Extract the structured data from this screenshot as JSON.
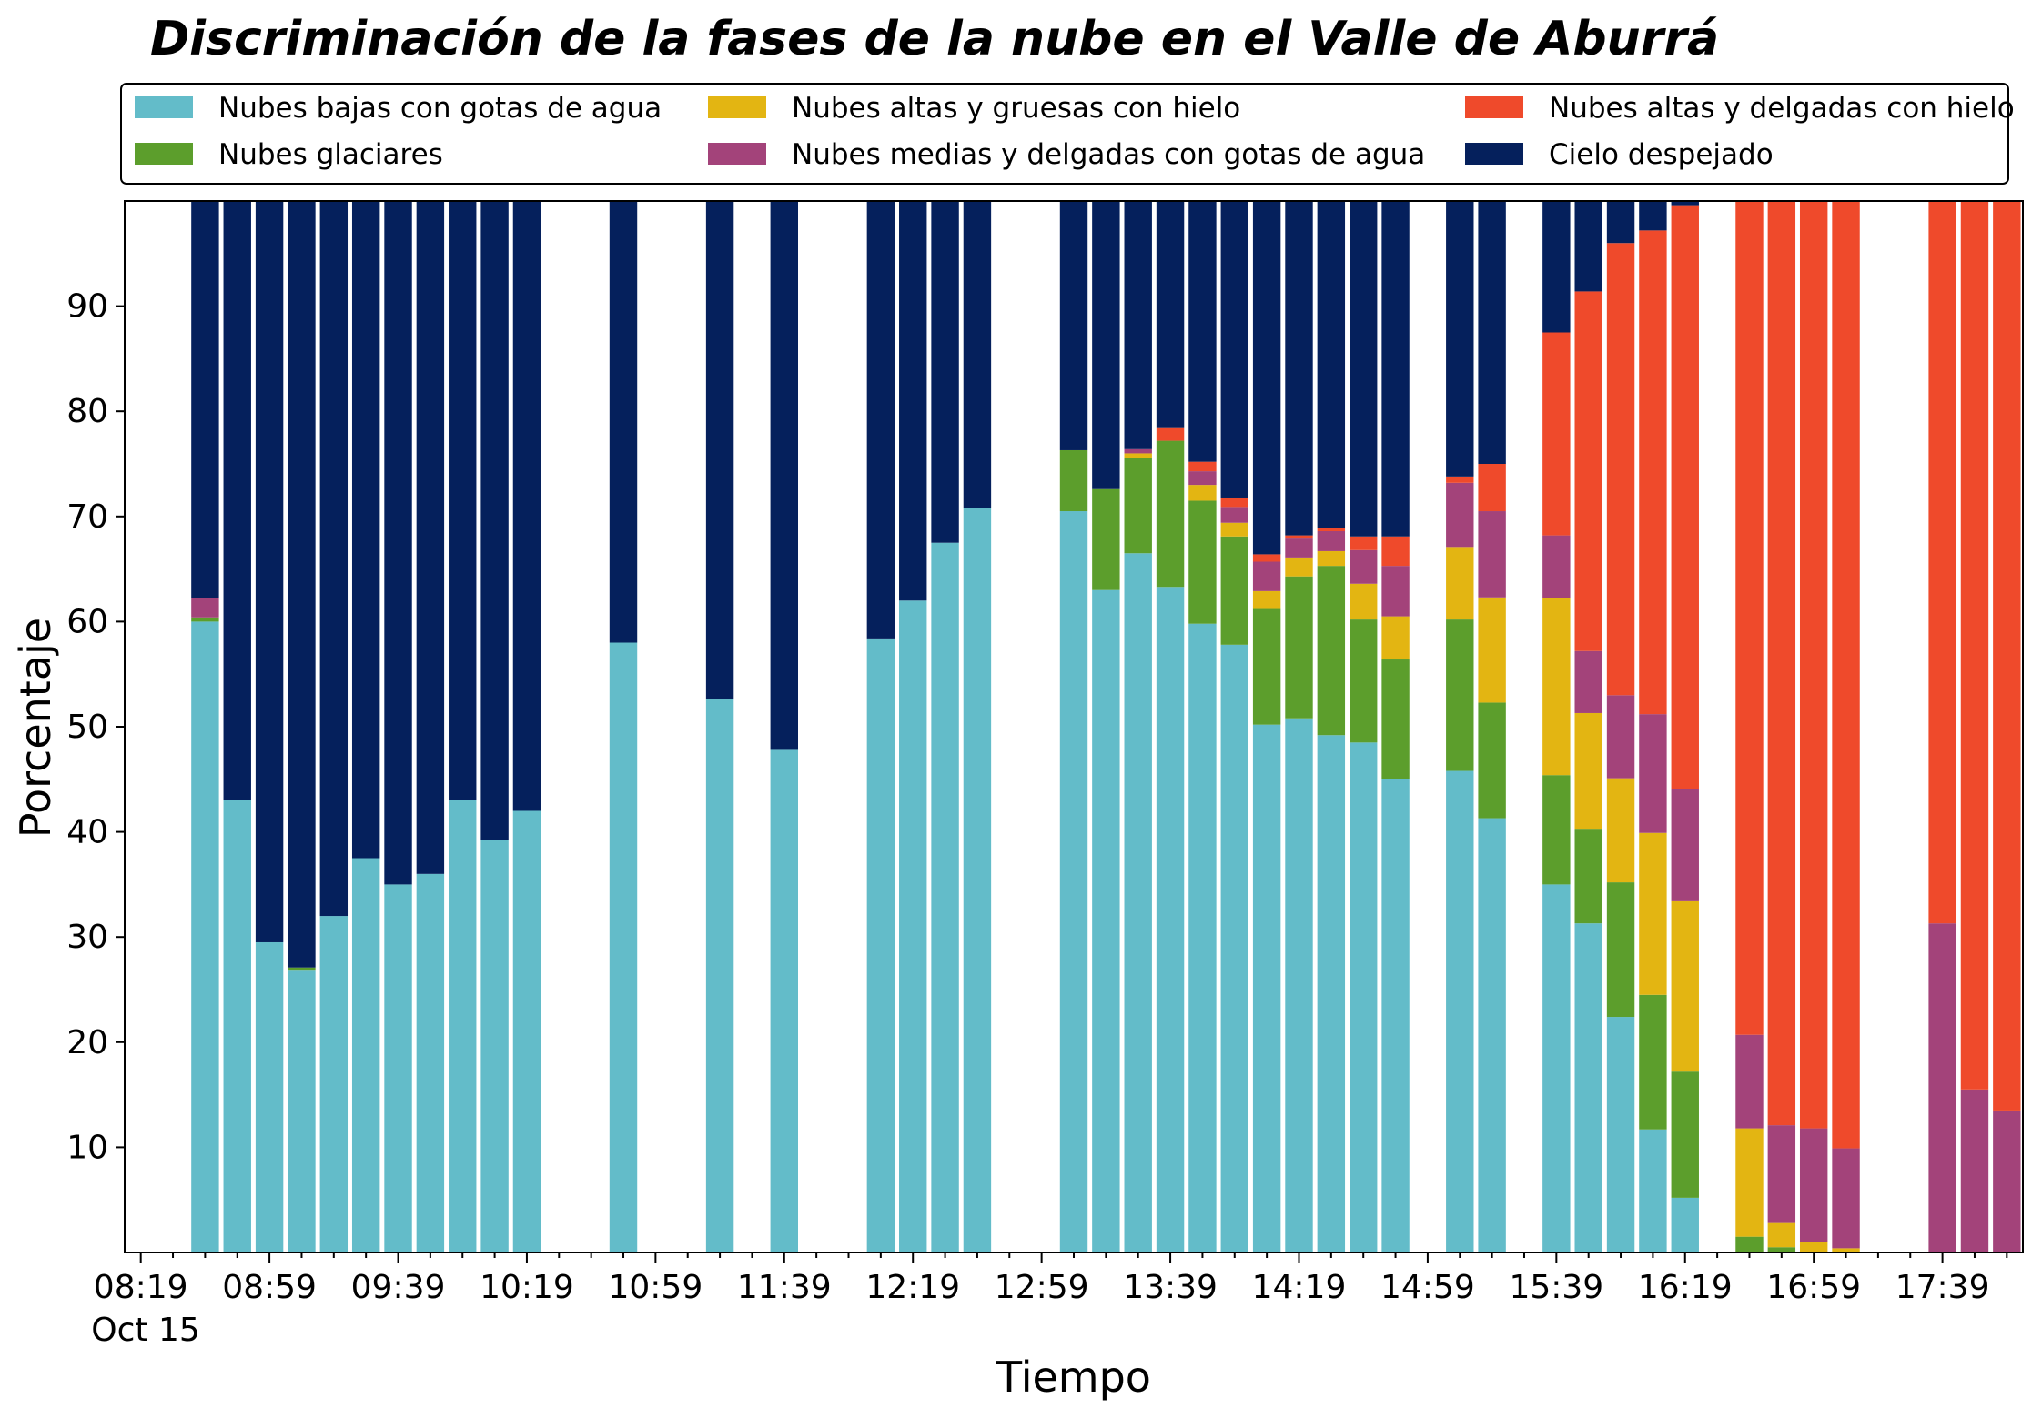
{
  "chart_data": {
    "type": "bar",
    "stacked": true,
    "title": "Discriminación de la fases de la nube en el Valle de Aburrá",
    "xlabel": "Tiempo",
    "ylabel": "Porcentaje",
    "ylim": [
      0,
      100
    ],
    "yticks": [
      10,
      20,
      30,
      40,
      50,
      60,
      70,
      80,
      90
    ],
    "x_start": "08:19",
    "x_end": "17:59",
    "x_step_minutes": 10,
    "x_major_ticks": [
      "08:19",
      "08:59",
      "09:39",
      "10:19",
      "10:59",
      "11:39",
      "12:19",
      "12:59",
      "13:39",
      "14:19",
      "14:59",
      "15:39",
      "16:19",
      "16:59",
      "17:39"
    ],
    "x_date_label": "Oct 15",
    "grid": false,
    "legend_position": "top",
    "categories": [
      "08:39",
      "08:49",
      "08:59",
      "09:09",
      "09:19",
      "09:29",
      "09:39",
      "09:49",
      "09:59",
      "10:09",
      "10:19",
      "10:49",
      "11:19",
      "11:39",
      "12:09",
      "12:19",
      "12:29",
      "12:39",
      "13:09",
      "13:19",
      "13:29",
      "13:39",
      "13:49",
      "13:59",
      "14:09",
      "14:19",
      "14:29",
      "14:39",
      "14:49",
      "15:09",
      "15:19",
      "15:39",
      "15:49",
      "15:59",
      "16:09",
      "16:19",
      "16:39",
      "16:49",
      "16:59",
      "17:09",
      "17:39",
      "17:49",
      "17:59"
    ],
    "series": [
      {
        "name": "Nubes bajas con gotas de agua",
        "color": "#63bcc9",
        "values": [
          60,
          43,
          29.5,
          26.8,
          32,
          37.5,
          35,
          36,
          43,
          39.2,
          42,
          58,
          52.6,
          47.8,
          58.4,
          62,
          67.5,
          70.8,
          70.5,
          63,
          66.5,
          63.3,
          59.8,
          57.8,
          50.2,
          50.8,
          49.2,
          48.5,
          45,
          45.8,
          41.3,
          35,
          31.3,
          22.4,
          11.7,
          5.2,
          0,
          0,
          0,
          0,
          0,
          0,
          0
        ]
      },
      {
        "name": "Nubes glaciares",
        "color": "#5c9e2c",
        "values": [
          0.4,
          0,
          0,
          0.3,
          0,
          0,
          0,
          0,
          0,
          0,
          0,
          0,
          0,
          0,
          0,
          0,
          0,
          0,
          5.8,
          9.6,
          9.1,
          13.9,
          11.7,
          10.3,
          11,
          13.5,
          16.1,
          11.7,
          11.4,
          14.4,
          11,
          10.4,
          9,
          12.8,
          12.8,
          12,
          1.5,
          0.5,
          0,
          0,
          0,
          0,
          0
        ]
      },
      {
        "name": "Nubes altas y gruesas con hielo",
        "color": "#e3b512",
        "values": [
          0,
          0,
          0,
          0,
          0,
          0,
          0,
          0,
          0,
          0,
          0,
          0,
          0,
          0,
          0,
          0,
          0,
          0,
          0,
          0,
          0.4,
          0,
          1.5,
          1.3,
          1.7,
          1.8,
          1.4,
          3.4,
          4.1,
          6.9,
          10,
          16.8,
          11,
          9.9,
          15.4,
          16.2,
          10.3,
          2.3,
          1,
          0.4,
          0,
          0,
          0
        ]
      },
      {
        "name": "Nubes medias y delgadas con gotas de agua",
        "color": "#a3437a",
        "values": [
          1.8,
          0,
          0,
          0,
          0,
          0,
          0,
          0,
          0,
          0,
          0,
          0,
          0,
          0,
          0,
          0,
          0,
          0,
          0,
          0,
          0.4,
          0,
          1.3,
          1.5,
          2.8,
          1.8,
          1.9,
          3.2,
          4.8,
          6.1,
          8.2,
          6,
          5.9,
          7.9,
          11.3,
          10.7,
          8.9,
          9.3,
          10.8,
          9.5,
          31.3,
          15.5,
          13.5
        ]
      },
      {
        "name": "Nubes altas y delgadas con hielo",
        "color": "#ef4a2b",
        "values": [
          0,
          0,
          0,
          0,
          0,
          0,
          0,
          0,
          0,
          0,
          0,
          0,
          0,
          0,
          0,
          0,
          0,
          0,
          0,
          0,
          0,
          1.2,
          0.9,
          0.9,
          0.7,
          0.3,
          0.3,
          1.3,
          2.8,
          0.6,
          4.5,
          19.3,
          34.2,
          43,
          46,
          55.5,
          79.3,
          87.9,
          88.2,
          90.1,
          68.7,
          84.5,
          86.5
        ]
      },
      {
        "name": "Cielo despejado",
        "color": "#05205c",
        "values": [
          37.8,
          57,
          70.5,
          72.9,
          68,
          62.5,
          65,
          64,
          57,
          60.8,
          58,
          42,
          47.4,
          52.2,
          41.6,
          38,
          32.5,
          29.2,
          23.7,
          27.4,
          23.6,
          21.6,
          24.8,
          28.2,
          33.6,
          31.8,
          31.1,
          31.9,
          31.9,
          26.2,
          25,
          12.5,
          8.6,
          4,
          2.8,
          0.4,
          0,
          0,
          0,
          0,
          0,
          0,
          0
        ]
      }
    ]
  }
}
